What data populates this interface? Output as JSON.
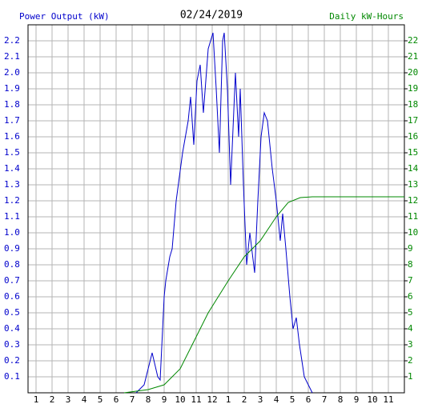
{
  "chart_data": {
    "type": "line",
    "title": "02/24/2019",
    "y_label": "Power Output (kW)",
    "y2_label": "Daily kW-Hours",
    "grid": true,
    "xlim": [
      0.5,
      24
    ],
    "xticks": [
      1,
      2,
      3,
      4,
      5,
      6,
      7,
      8,
      9,
      10,
      11,
      12,
      {
        "value": 13,
        "label": "1"
      },
      {
        "value": 14,
        "label": "2"
      },
      {
        "value": 15,
        "label": "3"
      },
      {
        "value": 16,
        "label": "4"
      },
      {
        "value": 17,
        "label": "5"
      },
      {
        "value": 18,
        "label": "6"
      },
      {
        "value": 19,
        "label": "7"
      },
      {
        "value": 20,
        "label": "8"
      },
      {
        "value": 21,
        "label": "9"
      },
      {
        "value": 22,
        "label": "10"
      },
      {
        "value": 23,
        "label": "11"
      }
    ],
    "ylim": [
      0,
      2.3
    ],
    "yticks": [
      0.1,
      0.2,
      0.3,
      0.4,
      0.5,
      0.6,
      0.7,
      0.8,
      0.9,
      {
        "value": 1.0,
        "label": "1.0"
      },
      1.1,
      1.2,
      1.3,
      1.4,
      1.5,
      1.6,
      1.7,
      1.8,
      1.9,
      {
        "value": 2.0,
        "label": "2.0"
      },
      2.1,
      2.2
    ],
    "y2lim": [
      0,
      23
    ],
    "y2ticks": [
      1,
      2,
      3,
      4,
      5,
      6,
      7,
      8,
      9,
      10,
      11,
      12,
      13,
      14,
      15,
      16,
      17,
      18,
      19,
      20,
      21,
      22
    ],
    "series": [
      {
        "name": "Power Output (kW)",
        "color": "#0000cc",
        "x": [
          7.25,
          7.75,
          8.25,
          8.6,
          8.75,
          9.0,
          9.1,
          9.35,
          9.5,
          9.75,
          10.15,
          10.5,
          10.65,
          10.85,
          11.05,
          11.25,
          11.45,
          11.75,
          12.05,
          12.25,
          12.45,
          12.65,
          12.75,
          12.95,
          13.15,
          13.45,
          13.65,
          13.75,
          13.95,
          14.15,
          14.35,
          14.65,
          14.85,
          15.05,
          15.25,
          15.45,
          15.75,
          16.0,
          16.25,
          16.4,
          16.6,
          16.85,
          17.05,
          17.25,
          17.45,
          17.75,
          18.15,
          18.25
        ],
        "values": [
          0,
          0.05,
          0.25,
          0.1,
          0.08,
          0.6,
          0.7,
          0.85,
          0.9,
          1.2,
          1.5,
          1.7,
          1.85,
          1.55,
          1.95,
          2.05,
          1.75,
          2.15,
          2.25,
          1.9,
          1.5,
          2.2,
          2.25,
          1.9,
          1.3,
          2.0,
          1.6,
          1.9,
          1.3,
          0.8,
          1.0,
          0.75,
          1.2,
          1.6,
          1.75,
          1.7,
          1.4,
          1.2,
          0.95,
          1.12,
          0.9,
          0.6,
          0.4,
          0.47,
          0.3,
          0.1,
          0.02,
          0
        ]
      },
      {
        "name": "Daily kW-Hours",
        "color": "#008800",
        "axis": "y2",
        "x": [
          6.5,
          8.0,
          9.0,
          10.0,
          10.75,
          11.75,
          13.0,
          14.0,
          15.0,
          16.0,
          16.75,
          17.5,
          18.25,
          24
        ],
        "values": [
          0,
          0.2,
          0.5,
          1.5,
          3,
          5,
          7,
          8.5,
          9.5,
          11,
          11.9,
          12.2,
          12.25,
          12.25
        ]
      }
    ]
  }
}
